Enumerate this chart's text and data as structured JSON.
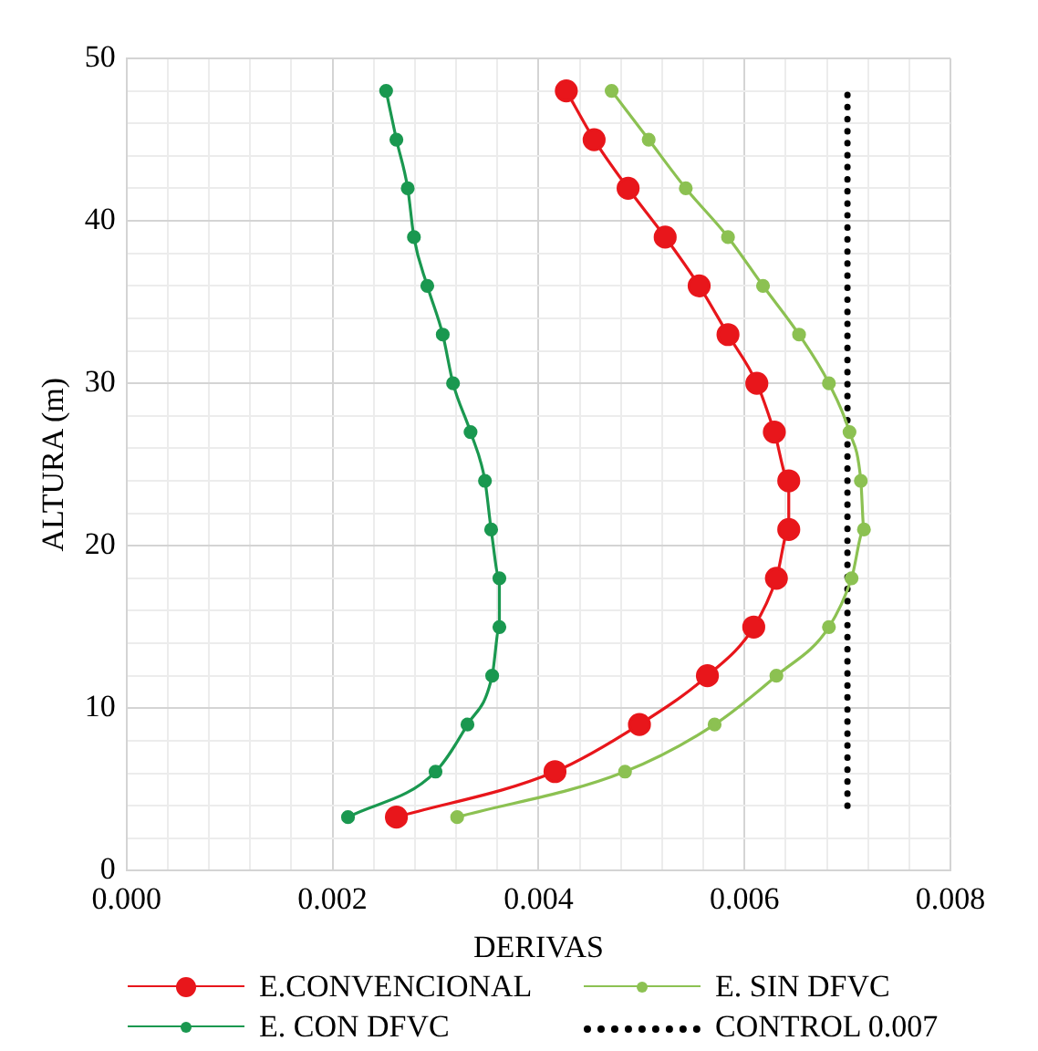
{
  "chart_data": {
    "type": "line",
    "xlabel": "DERIVAS",
    "ylabel": "ALTURA (m)",
    "xlim": [
      0,
      0.008
    ],
    "xticks": [
      {
        "value": 0,
        "label": "0.000"
      },
      {
        "value": 0.0004,
        "label": null
      },
      {
        "value": 0.0008,
        "label": null
      },
      {
        "value": 0.0012,
        "label": null
      },
      {
        "value": 0.0016,
        "label": null
      },
      {
        "value": 0.002,
        "label": "0.002"
      },
      {
        "value": 0.0024,
        "label": null
      },
      {
        "value": 0.0028,
        "label": null
      },
      {
        "value": 0.0032,
        "label": null
      },
      {
        "value": 0.0036,
        "label": null
      },
      {
        "value": 0.004,
        "label": "0.004"
      },
      {
        "value": 0.0044,
        "label": null
      },
      {
        "value": 0.0048,
        "label": null
      },
      {
        "value": 0.0052,
        "label": null
      },
      {
        "value": 0.0056,
        "label": null
      },
      {
        "value": 0.006,
        "label": "0.006"
      },
      {
        "value": 0.0064,
        "label": null
      },
      {
        "value": 0.0068,
        "label": null
      },
      {
        "value": 0.0072,
        "label": null
      },
      {
        "value": 0.0076,
        "label": null
      },
      {
        "value": 0.008,
        "label": "0.008"
      }
    ],
    "ylim": [
      0,
      50
    ],
    "yticks": [
      0,
      {
        "value": 2,
        "label": null
      },
      {
        "value": 4,
        "label": null
      },
      {
        "value": 6,
        "label": null
      },
      {
        "value": 8,
        "label": null
      },
      10,
      {
        "value": 12,
        "label": null
      },
      {
        "value": 14,
        "label": null
      },
      {
        "value": 16,
        "label": null
      },
      {
        "value": 18,
        "label": null
      },
      20,
      {
        "value": 22,
        "label": null
      },
      {
        "value": 24,
        "label": null
      },
      {
        "value": 26,
        "label": null
      },
      {
        "value": 28,
        "label": null
      },
      30,
      {
        "value": 32,
        "label": null
      },
      {
        "value": 34,
        "label": null
      },
      {
        "value": 36,
        "label": null
      },
      {
        "value": 38,
        "label": null
      },
      40,
      {
        "value": 42,
        "label": null
      },
      {
        "value": 44,
        "label": null
      },
      {
        "value": 46,
        "label": null
      },
      {
        "value": 48,
        "label": null
      },
      50
    ],
    "grid": true,
    "legend": "bottom",
    "series": [
      {
        "name": "E.CONVENCIONAL",
        "color": "#e8161b",
        "marker": "circle",
        "x": [
          0.00427,
          0.00454,
          0.00487,
          0.00523,
          0.00556,
          0.00584,
          0.00612,
          0.00629,
          0.00643,
          0.00643,
          0.00631,
          0.00609,
          0.00564,
          0.00498,
          0.00416,
          0.00262
        ],
        "values": [
          48,
          45,
          42,
          39,
          36,
          33,
          30,
          27,
          24,
          21,
          18,
          15,
          12,
          9,
          6.1,
          3.3
        ]
      },
      {
        "name": "E. SIN DFVC",
        "color": "#8cc152",
        "marker": "circle",
        "x": [
          0.00471,
          0.00507,
          0.00543,
          0.00584,
          0.00618,
          0.00653,
          0.00682,
          0.00702,
          0.00713,
          0.00716,
          0.00704,
          0.00682,
          0.00631,
          0.00571,
          0.00484,
          0.00321
        ],
        "values": [
          48,
          45,
          42,
          39,
          36,
          33,
          30,
          27,
          24,
          21,
          18,
          15,
          12,
          9,
          6.1,
          3.3
        ]
      },
      {
        "name": "E. CON DFVC",
        "color": "#1a9850",
        "marker": "circle",
        "x": [
          0.00252,
          0.00262,
          0.00273,
          0.00279,
          0.00292,
          0.00307,
          0.00317,
          0.00334,
          0.00348,
          0.00354,
          0.00362,
          0.00362,
          0.00355,
          0.00331,
          0.003,
          0.00215
        ],
        "values": [
          48,
          45,
          42,
          39,
          36,
          33,
          30,
          27,
          24,
          21,
          18,
          15,
          12,
          9,
          6.1,
          3.3
        ]
      },
      {
        "name": "CONTROL 0.007",
        "color": "#000000",
        "marker": "none",
        "line_style": "dotted",
        "x": [
          0.007,
          0.007
        ],
        "values": [
          4,
          48
        ]
      }
    ]
  }
}
